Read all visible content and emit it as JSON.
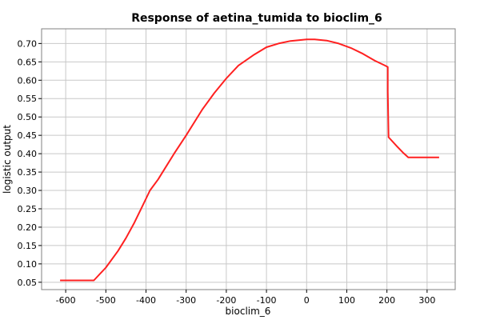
{
  "chart_data": {
    "type": "line",
    "title": "Response of aetina_tumida to bioclim_6",
    "xlabel": "bioclim_6",
    "ylabel": "logistic output",
    "xlim": [
      -660,
      370
    ],
    "ylim": [
      0.03,
      0.74
    ],
    "xticks": [
      -600,
      -500,
      -400,
      -300,
      -200,
      -100,
      0,
      100,
      200,
      300
    ],
    "yticks": [
      0.05,
      0.1,
      0.15,
      0.2,
      0.25,
      0.3,
      0.35,
      0.4,
      0.45,
      0.5,
      0.55,
      0.6,
      0.65,
      0.7
    ],
    "grid": true,
    "series": [
      {
        "color": "#ff2020",
        "x": [
          -614,
          -530,
          -500,
          -470,
          -450,
          -430,
          -410,
          -390,
          -370,
          -350,
          -330,
          -300,
          -260,
          -230,
          -200,
          -170,
          -130,
          -100,
          -70,
          -40,
          -10,
          0,
          20,
          50,
          80,
          110,
          140,
          170,
          195,
          202,
          202,
          204,
          225,
          240,
          253,
          265,
          330
        ],
        "y": [
          0.055,
          0.055,
          0.09,
          0.135,
          0.17,
          0.21,
          0.255,
          0.3,
          0.33,
          0.365,
          0.4,
          0.45,
          0.52,
          0.565,
          0.605,
          0.64,
          0.67,
          0.69,
          0.7,
          0.707,
          0.71,
          0.711,
          0.711,
          0.708,
          0.7,
          0.688,
          0.672,
          0.653,
          0.64,
          0.636,
          0.57,
          0.445,
          0.42,
          0.403,
          0.39,
          0.39,
          0.39
        ]
      }
    ]
  }
}
